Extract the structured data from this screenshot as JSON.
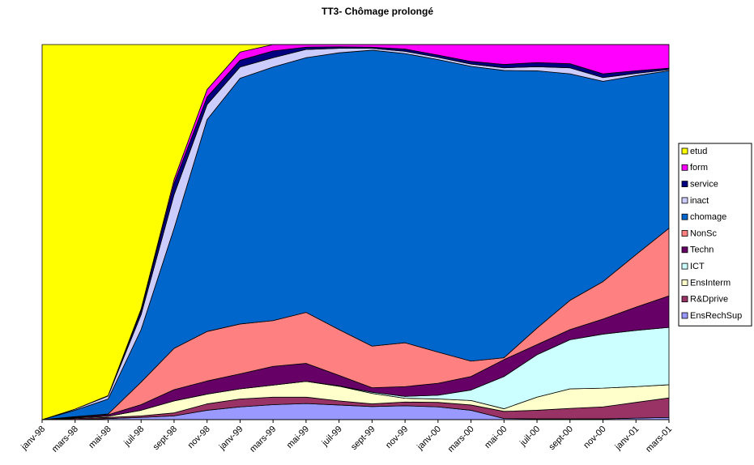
{
  "chart_data": {
    "type": "stacked_area",
    "title": "TT3- Chômage prolongé",
    "categories": [
      "janv-98",
      "mars-98",
      "mai-98",
      "juil-98",
      "sept-98",
      "nov-98",
      "janv-99",
      "mars-99",
      "mai-99",
      "juil-99",
      "sept-99",
      "nov-99",
      "janv-00",
      "mars-00",
      "mai-00",
      "juil-00",
      "sept-00",
      "nov-00",
      "janv-01",
      "mars-01"
    ],
    "ylim": [
      0,
      100
    ],
    "series": [
      {
        "name": "EnsRechSup",
        "color": "#9999ff",
        "values": [
          0,
          0,
          0.3,
          0.6,
          1,
          2.5,
          3.4,
          4,
          4.3,
          3.9,
          3.5,
          3.7,
          3.4,
          2.5,
          0.3,
          0.2,
          0.2,
          0.2,
          0.4,
          0.6
        ]
      },
      {
        "name": "R&Dprive",
        "color": "#993366",
        "values": [
          0,
          0.3,
          0.3,
          0.4,
          0.8,
          1.7,
          2.1,
          2,
          1.7,
          1.1,
          0.7,
          1,
          1.2,
          1.4,
          1.9,
          2.3,
          2.8,
          3.2,
          4.2,
          5.2
        ]
      },
      {
        "name": "EnsInterm",
        "color": "#ffffcc",
        "values": [
          0,
          0.2,
          0.3,
          1.5,
          3.2,
          2.6,
          2.7,
          3.2,
          4.2,
          3.9,
          2.8,
          1,
          0.9,
          1.2,
          0.7,
          3.5,
          5.2,
          5,
          4.2,
          3.5
        ]
      },
      {
        "name": "ICT",
        "color": "#ccffff",
        "values": [
          0,
          0,
          0,
          0,
          0,
          0,
          0,
          0,
          0,
          0.1,
          0.3,
          0.5,
          1,
          2.8,
          8.6,
          11.3,
          13.1,
          14.4,
          15,
          15.3
        ]
      },
      {
        "name": "Techn",
        "color": "#660066",
        "values": [
          0,
          0.2,
          0.4,
          1.5,
          3,
          3.5,
          4,
          5,
          4.8,
          2.8,
          1.2,
          2.6,
          3.2,
          3.6,
          4.5,
          2.7,
          2.7,
          4,
          6.2,
          8.4
        ]
      },
      {
        "name": "NonSc",
        "color": "#ff8080",
        "values": [
          0,
          0.1,
          0.2,
          6,
          11,
          13.2,
          13.3,
          12.2,
          13.6,
          12.2,
          11.1,
          11.7,
          8.3,
          4.1,
          0.5,
          4.4,
          7.8,
          10,
          14,
          18
        ]
      },
      {
        "name": "chomage",
        "color": "#0066cc",
        "values": [
          0,
          1.7,
          4,
          14,
          32,
          56.5,
          65.5,
          67.6,
          67.9,
          73.8,
          78.9,
          77.1,
          78,
          78.6,
          76.6,
          68.6,
          60.4,
          53.4,
          47.7,
          42
        ]
      },
      {
        "name": "inact",
        "color": "#ccccff",
        "values": [
          0,
          0.3,
          0.8,
          4,
          9,
          4,
          3,
          2.5,
          2.2,
          1.2,
          0.5,
          0.6,
          0.6,
          0.6,
          0.7,
          1.1,
          1.6,
          1,
          0.6,
          0.3
        ]
      },
      {
        "name": "service",
        "color": "#000080",
        "values": [
          0,
          0,
          0.1,
          1,
          3,
          2,
          1.8,
          1.8,
          0.6,
          0.4,
          0.3,
          0.6,
          0.6,
          0.7,
          0.9,
          1.1,
          1.1,
          1,
          0.7,
          0.4
        ]
      },
      {
        "name": "form",
        "color": "#ff00ff",
        "values": [
          0,
          0,
          0,
          0.5,
          1,
          2,
          2.2,
          1.7,
          0.7,
          0.6,
          0.7,
          1.2,
          2.8,
          4.5,
          5.3,
          4.8,
          5.1,
          7.8,
          7,
          6.3
        ]
      },
      {
        "name": "etud",
        "color": "#ffff00",
        "values": [
          100,
          97.2,
          93.6,
          70.5,
          36,
          12,
          2,
          0,
          0,
          0,
          0,
          0,
          0,
          0,
          0,
          0,
          0,
          0,
          0,
          0
        ]
      }
    ]
  }
}
